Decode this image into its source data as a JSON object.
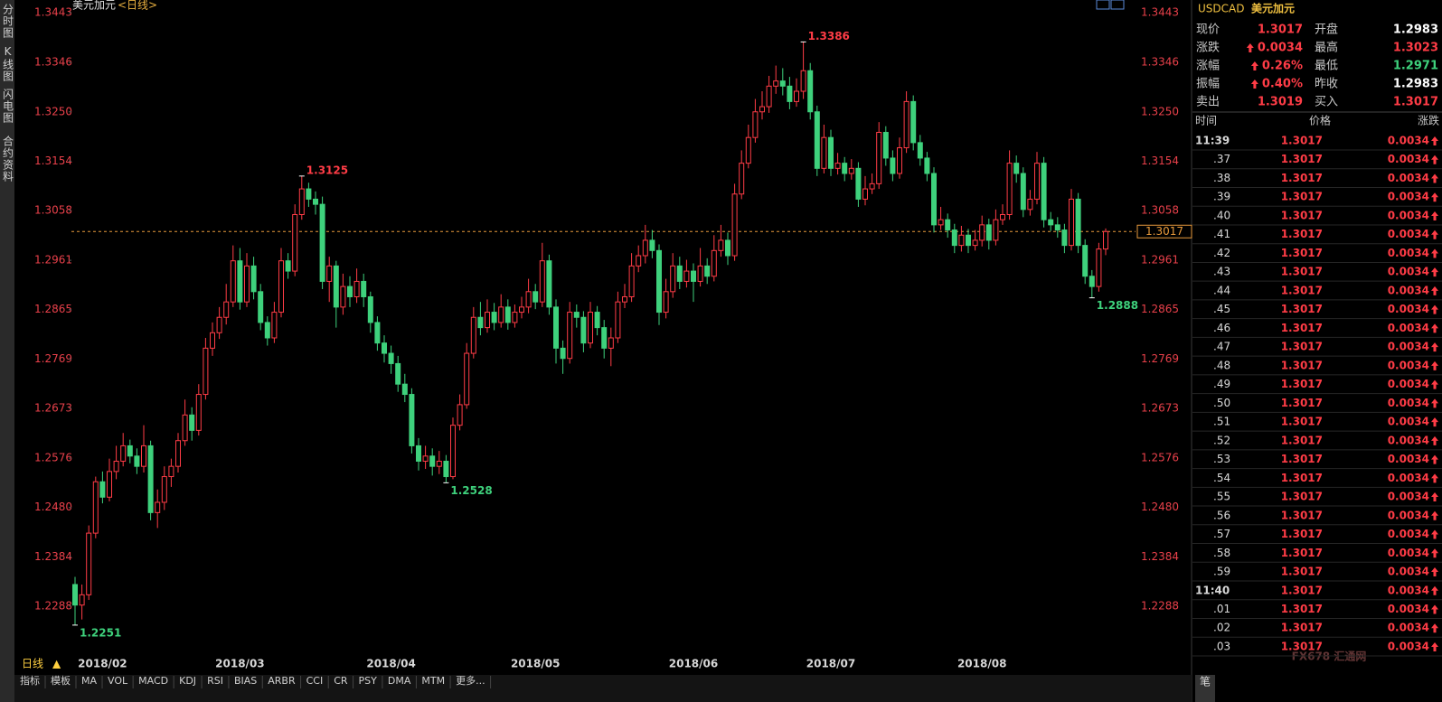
{
  "chart_data": {
    "type": "candlestick",
    "title": "美元加元",
    "period": "<日线>",
    "categories": [
      null,
      null,
      null,
      null,
      "2018/02",
      null,
      null,
      null,
      null,
      null,
      null,
      null,
      null,
      null,
      null,
      null,
      null,
      null,
      null,
      null,
      null,
      null,
      null,
      null,
      "2018/03",
      null,
      null,
      null,
      null,
      null,
      null,
      null,
      null,
      null,
      null,
      null,
      null,
      null,
      null,
      null,
      null,
      null,
      null,
      null,
      null,
      null,
      "2018/04",
      null,
      null,
      null,
      null,
      null,
      null,
      null,
      null,
      null,
      null,
      null,
      null,
      null,
      null,
      null,
      null,
      null,
      null,
      null,
      null,
      "2018/05",
      null,
      null,
      null,
      null,
      null,
      null,
      null,
      null,
      null,
      null,
      null,
      null,
      null,
      null,
      null,
      null,
      null,
      null,
      null,
      null,
      null,
      null,
      "2018/06",
      null,
      null,
      null,
      null,
      null,
      null,
      null,
      null,
      null,
      null,
      null,
      null,
      null,
      null,
      null,
      null,
      null,
      null,
      null,
      "2018/07",
      null,
      null,
      null,
      null,
      null,
      null,
      null,
      null,
      null,
      null,
      null,
      null,
      null,
      null,
      null,
      null,
      null,
      null,
      null,
      null,
      null,
      "2018/08",
      null,
      null,
      null,
      null,
      null,
      null,
      null,
      null,
      null,
      null,
      null,
      null,
      null,
      null,
      null,
      null,
      null,
      null
    ],
    "ohlc": [
      [
        1.233,
        1.2345,
        1.2251,
        1.229
      ],
      [
        1.229,
        1.233,
        1.2262,
        1.231
      ],
      [
        1.231,
        1.2445,
        1.23,
        1.243
      ],
      [
        1.243,
        1.254,
        1.242,
        1.253
      ],
      [
        1.253,
        1.255,
        1.2488,
        1.25
      ],
      [
        1.25,
        1.2575,
        1.2492,
        1.255
      ],
      [
        1.255,
        1.26,
        1.2535,
        1.257
      ],
      [
        1.257,
        1.2625,
        1.256,
        1.26
      ],
      [
        1.26,
        1.2612,
        1.2566,
        1.258
      ],
      [
        1.258,
        1.2595,
        1.2545,
        1.256
      ],
      [
        1.256,
        1.264,
        1.2548,
        1.26
      ],
      [
        1.26,
        1.261,
        1.2455,
        1.247
      ],
      [
        1.247,
        1.2515,
        1.244,
        1.249
      ],
      [
        1.249,
        1.256,
        1.2475,
        1.254
      ],
      [
        1.254,
        1.2575,
        1.252,
        1.256
      ],
      [
        1.256,
        1.2625,
        1.2548,
        1.261
      ],
      [
        1.261,
        1.269,
        1.26,
        1.266
      ],
      [
        1.266,
        1.2675,
        1.261,
        1.263
      ],
      [
        1.263,
        1.272,
        1.262,
        1.27
      ],
      [
        1.27,
        1.281,
        1.269,
        1.279
      ],
      [
        1.279,
        1.284,
        1.2775,
        1.282
      ],
      [
        1.282,
        1.287,
        1.2808,
        1.285
      ],
      [
        1.285,
        1.2915,
        1.2836,
        1.288
      ],
      [
        1.288,
        1.299,
        1.287,
        1.296
      ],
      [
        1.296,
        1.2985,
        1.2865,
        1.288
      ],
      [
        1.288,
        1.2975,
        1.287,
        1.295
      ],
      [
        1.295,
        1.2968,
        1.2885,
        1.29
      ],
      [
        1.29,
        1.2915,
        1.2825,
        1.284
      ],
      [
        1.284,
        1.2852,
        1.2795,
        1.281
      ],
      [
        1.281,
        1.288,
        1.28,
        1.286
      ],
      [
        1.286,
        1.2985,
        1.285,
        1.296
      ],
      [
        1.296,
        1.2975,
        1.2925,
        1.294
      ],
      [
        1.294,
        1.307,
        1.293,
        1.305
      ],
      [
        1.305,
        1.3125,
        1.304,
        1.31
      ],
      [
        1.31,
        1.3112,
        1.3065,
        1.308
      ],
      [
        1.308,
        1.3095,
        1.305,
        1.307
      ],
      [
        1.307,
        1.3085,
        1.2905,
        1.292
      ],
      [
        1.292,
        1.2968,
        1.288,
        1.295
      ],
      [
        1.295,
        1.296,
        1.283,
        1.287
      ],
      [
        1.287,
        1.2935,
        1.2855,
        1.291
      ],
      [
        1.291,
        1.293,
        1.287,
        1.289
      ],
      [
        1.289,
        1.2945,
        1.2878,
        1.292
      ],
      [
        1.292,
        1.2935,
        1.287,
        1.289
      ],
      [
        1.289,
        1.29,
        1.282,
        1.284
      ],
      [
        1.284,
        1.2852,
        1.2785,
        1.28
      ],
      [
        1.28,
        1.2815,
        1.2762,
        1.278
      ],
      [
        1.278,
        1.2795,
        1.274,
        1.276
      ],
      [
        1.276,
        1.2775,
        1.2705,
        1.272
      ],
      [
        1.272,
        1.274,
        1.2685,
        1.27
      ],
      [
        1.27,
        1.2712,
        1.2585,
        1.26
      ],
      [
        1.26,
        1.2615,
        1.2552,
        1.257
      ],
      [
        1.257,
        1.26,
        1.2555,
        1.258
      ],
      [
        1.258,
        1.2595,
        1.2542,
        1.256
      ],
      [
        1.256,
        1.259,
        1.2545,
        1.257
      ],
      [
        1.257,
        1.2582,
        1.2528,
        1.254
      ],
      [
        1.254,
        1.2655,
        1.2535,
        1.264
      ],
      [
        1.264,
        1.27,
        1.263,
        1.268
      ],
      [
        1.268,
        1.28,
        1.2672,
        1.278
      ],
      [
        1.278,
        1.287,
        1.277,
        1.285
      ],
      [
        1.285,
        1.288,
        1.2815,
        1.283
      ],
      [
        1.283,
        1.2885,
        1.282,
        1.286
      ],
      [
        1.286,
        1.2878,
        1.2825,
        1.284
      ],
      [
        1.284,
        1.2895,
        1.283,
        1.287
      ],
      [
        1.287,
        1.2885,
        1.2826,
        1.284
      ],
      [
        1.284,
        1.2875,
        1.283,
        1.286
      ],
      [
        1.286,
        1.289,
        1.2848,
        1.287
      ],
      [
        1.287,
        1.2925,
        1.2858,
        1.29
      ],
      [
        1.29,
        1.2915,
        1.2866,
        1.288
      ],
      [
        1.288,
        1.2995,
        1.287,
        1.296
      ],
      [
        1.296,
        1.2972,
        1.2855,
        1.287
      ],
      [
        1.287,
        1.2885,
        1.276,
        1.279
      ],
      [
        1.279,
        1.2805,
        1.274,
        1.277
      ],
      [
        1.277,
        1.288,
        1.276,
        1.286
      ],
      [
        1.286,
        1.2875,
        1.283,
        1.285
      ],
      [
        1.285,
        1.2862,
        1.2782,
        1.28
      ],
      [
        1.28,
        1.288,
        1.279,
        1.286
      ],
      [
        1.286,
        1.2872,
        1.2815,
        1.283
      ],
      [
        1.283,
        1.2845,
        1.277,
        1.279
      ],
      [
        1.279,
        1.283,
        1.2755,
        1.281
      ],
      [
        1.281,
        1.29,
        1.28,
        1.288
      ],
      [
        1.288,
        1.2915,
        1.2868,
        1.289
      ],
      [
        1.289,
        1.2975,
        1.288,
        1.295
      ],
      [
        1.295,
        1.299,
        1.2938,
        1.297
      ],
      [
        1.297,
        1.303,
        1.2955,
        1.3
      ],
      [
        1.3,
        1.302,
        1.2965,
        1.298
      ],
      [
        1.298,
        1.2992,
        1.2835,
        1.286
      ],
      [
        1.286,
        1.2925,
        1.2848,
        1.29
      ],
      [
        1.29,
        1.2975,
        1.2888,
        1.295
      ],
      [
        1.295,
        1.2968,
        1.2905,
        1.292
      ],
      [
        1.292,
        1.2962,
        1.2908,
        1.294
      ],
      [
        1.294,
        1.2955,
        1.288,
        1.292
      ],
      [
        1.292,
        1.2985,
        1.291,
        1.295
      ],
      [
        1.295,
        1.2965,
        1.2915,
        1.293
      ],
      [
        1.293,
        1.301,
        1.292,
        1.298
      ],
      [
        1.298,
        1.303,
        1.2968,
        1.3
      ],
      [
        1.3,
        1.3015,
        1.2952,
        1.297
      ],
      [
        1.297,
        1.311,
        1.296,
        1.309
      ],
      [
        1.309,
        1.3175,
        1.308,
        1.315
      ],
      [
        1.315,
        1.3225,
        1.314,
        1.32
      ],
      [
        1.32,
        1.3275,
        1.319,
        1.325
      ],
      [
        1.325,
        1.329,
        1.3235,
        1.326
      ],
      [
        1.326,
        1.332,
        1.3248,
        1.33
      ],
      [
        1.33,
        1.334,
        1.3285,
        1.331
      ],
      [
        1.331,
        1.3335,
        1.3282,
        1.33
      ],
      [
        1.33,
        1.3318,
        1.3255,
        1.327
      ],
      [
        1.327,
        1.3315,
        1.326,
        1.329
      ],
      [
        1.329,
        1.3386,
        1.3275,
        1.333
      ],
      [
        1.333,
        1.3345,
        1.3235,
        1.325
      ],
      [
        1.325,
        1.3262,
        1.3125,
        1.314
      ],
      [
        1.314,
        1.3225,
        1.313,
        1.32
      ],
      [
        1.32,
        1.3215,
        1.3125,
        1.314
      ],
      [
        1.314,
        1.317,
        1.3128,
        1.315
      ],
      [
        1.315,
        1.3162,
        1.3115,
        1.313
      ],
      [
        1.313,
        1.3158,
        1.3118,
        1.314
      ],
      [
        1.314,
        1.3152,
        1.3065,
        1.308
      ],
      [
        1.308,
        1.3125,
        1.3068,
        1.31
      ],
      [
        1.31,
        1.313,
        1.309,
        1.311
      ],
      [
        1.311,
        1.323,
        1.31,
        1.321
      ],
      [
        1.321,
        1.3222,
        1.3145,
        1.316
      ],
      [
        1.316,
        1.3175,
        1.3115,
        1.313
      ],
      [
        1.313,
        1.32,
        1.312,
        1.318
      ],
      [
        1.318,
        1.329,
        1.317,
        1.327
      ],
      [
        1.327,
        1.3282,
        1.3175,
        1.319
      ],
      [
        1.319,
        1.3205,
        1.3145,
        1.316
      ],
      [
        1.316,
        1.3172,
        1.3115,
        1.313
      ],
      [
        1.313,
        1.3142,
        1.3015,
        1.303
      ],
      [
        1.303,
        1.3065,
        1.302,
        1.304
      ],
      [
        1.304,
        1.3052,
        1.3005,
        1.302
      ],
      [
        1.302,
        1.3032,
        1.2975,
        1.299
      ],
      [
        1.299,
        1.3028,
        1.2978,
        1.301
      ],
      [
        1.301,
        1.3022,
        1.2975,
        1.299
      ],
      [
        1.299,
        1.302,
        1.298,
        1.3
      ],
      [
        1.3,
        1.3048,
        1.2988,
        1.303
      ],
      [
        1.303,
        1.3042,
        1.2982,
        1.3
      ],
      [
        1.3,
        1.306,
        1.299,
        1.304
      ],
      [
        1.304,
        1.307,
        1.303,
        1.305
      ],
      [
        1.305,
        1.3175,
        1.304,
        1.315
      ],
      [
        1.315,
        1.3165,
        1.3112,
        1.313
      ],
      [
        1.313,
        1.3142,
        1.3045,
        1.306
      ],
      [
        1.306,
        1.3098,
        1.3048,
        1.308
      ],
      [
        1.308,
        1.3172,
        1.307,
        1.315
      ],
      [
        1.315,
        1.3162,
        1.3025,
        1.304
      ],
      [
        1.304,
        1.3055,
        1.3018,
        1.303
      ],
      [
        1.303,
        1.3045,
        1.3005,
        1.302
      ],
      [
        1.302,
        1.3032,
        1.2975,
        1.299
      ],
      [
        1.299,
        1.31,
        1.298,
        1.308
      ],
      [
        1.308,
        1.3092,
        1.2975,
        1.299
      ],
      [
        1.299,
        1.3002,
        1.2915,
        1.293
      ],
      [
        1.293,
        1.2942,
        1.2888,
        1.291
      ],
      [
        1.291,
        1.2995,
        1.29,
        1.2983
      ],
      [
        1.2983,
        1.3023,
        1.2971,
        1.3017
      ]
    ],
    "up_color": "#ff3c46",
    "down_color": "#3ed17c",
    "ylim": [
      1.2184,
      1.3443
    ],
    "yticks": [
      1.3443,
      1.3346,
      {
        "value": 1.325,
        "label": "1.3250"
      },
      1.3154,
      1.3058,
      1.2961,
      1.2865,
      1.2769,
      1.2673,
      1.2576,
      {
        "value": 1.248,
        "label": "1.2480"
      },
      1.2384,
      1.2288
    ],
    "annotations": [
      {
        "index": 0,
        "value": 1.2251,
        "color": "#3ed17c"
      },
      {
        "index": 33,
        "value": 1.3125,
        "color": "#ff3c46"
      },
      {
        "index": 54,
        "value": 1.2528,
        "color": "#3ed17c"
      },
      {
        "index": 106,
        "value": 1.3386,
        "color": "#ff3c46"
      },
      {
        "index": 148,
        "value": 1.2888,
        "color": "#3ed17c"
      }
    ],
    "last_price": {
      "value": 1.3017,
      "color": "#e89a3c"
    }
  },
  "sidebar": [
    "分时图",
    "K线图",
    "闪电图",
    "合约资料"
  ],
  "toolbar": {
    "period": "日线",
    "tabs": [
      "指标",
      "模板",
      "MA",
      "VOL",
      "MACD",
      "KDJ",
      "RSI",
      "BIAS",
      "ARBR",
      "CCI",
      "CR",
      "PSY",
      "DMA",
      "MTM",
      "更多..."
    ]
  },
  "quote": {
    "symbol": "USDCAD",
    "name": "美元加元",
    "fields": [
      [
        {
          "label": "现价",
          "value": "1.3017",
          "color": "#ff3c46"
        },
        {
          "label": "开盘",
          "value": "1.2983",
          "color": "#ffffff"
        }
      ],
      [
        {
          "label": "涨跌",
          "value": "0.0034",
          "color": "#ff3c46",
          "up": true
        },
        {
          "label": "最高",
          "value": "1.3023",
          "color": "#ff3c46"
        }
      ],
      [
        {
          "label": "涨幅",
          "value": "0.26%",
          "color": "#ff3c46",
          "up": true
        },
        {
          "label": "最低",
          "value": "1.2971",
          "color": "#3ed17c"
        }
      ],
      [
        {
          "label": "振幅",
          "value": "0.40%",
          "color": "#ff3c46",
          "up": true
        },
        {
          "label": "昨收",
          "value": "1.2983",
          "color": "#ffffff"
        }
      ],
      [
        {
          "label": "卖出",
          "value": "1.3019",
          "color": "#ff3c46"
        },
        {
          "label": "买入",
          "value": "1.3017",
          "color": "#ff3c46"
        }
      ]
    ],
    "ticks_header": [
      "时间",
      "价格",
      "涨跌"
    ],
    "ticks": [
      {
        "time": "11:39",
        "price": "1.3017",
        "change": "0.0034"
      },
      {
        "time": ".37",
        "price": "1.3017",
        "change": "0.0034"
      },
      {
        "time": ".38",
        "price": "1.3017",
        "change": "0.0034"
      },
      {
        "time": ".39",
        "price": "1.3017",
        "change": "0.0034"
      },
      {
        "time": ".40",
        "price": "1.3017",
        "change": "0.0034"
      },
      {
        "time": ".41",
        "price": "1.3017",
        "change": "0.0034"
      },
      {
        "time": ".42",
        "price": "1.3017",
        "change": "0.0034"
      },
      {
        "time": ".43",
        "price": "1.3017",
        "change": "0.0034"
      },
      {
        "time": ".44",
        "price": "1.3017",
        "change": "0.0034"
      },
      {
        "time": ".45",
        "price": "1.3017",
        "change": "0.0034"
      },
      {
        "time": ".46",
        "price": "1.3017",
        "change": "0.0034"
      },
      {
        "time": ".47",
        "price": "1.3017",
        "change": "0.0034"
      },
      {
        "time": ".48",
        "price": "1.3017",
        "change": "0.0034"
      },
      {
        "time": ".49",
        "price": "1.3017",
        "change": "0.0034"
      },
      {
        "time": ".50",
        "price": "1.3017",
        "change": "0.0034"
      },
      {
        "time": ".51",
        "price": "1.3017",
        "change": "0.0034"
      },
      {
        "time": ".52",
        "price": "1.3017",
        "change": "0.0034"
      },
      {
        "time": ".53",
        "price": "1.3017",
        "change": "0.0034"
      },
      {
        "time": ".54",
        "price": "1.3017",
        "change": "0.0034"
      },
      {
        "time": ".55",
        "price": "1.3017",
        "change": "0.0034"
      },
      {
        "time": ".56",
        "price": "1.3017",
        "change": "0.0034"
      },
      {
        "time": ".57",
        "price": "1.3017",
        "change": "0.0034"
      },
      {
        "time": ".58",
        "price": "1.3017",
        "change": "0.0034"
      },
      {
        "time": ".59",
        "price": "1.3017",
        "change": "0.0034"
      },
      {
        "time": "11:40",
        "price": "1.3017",
        "change": "0.0034"
      },
      {
        "time": ".01",
        "price": "1.3017",
        "change": "0.0034"
      },
      {
        "time": ".02",
        "price": "1.3017",
        "change": "0.0034"
      },
      {
        "time": ".03",
        "price": "1.3017",
        "change": "0.0034"
      }
    ]
  },
  "watermark": "FX678 汇通网",
  "footer_tab": "笔"
}
